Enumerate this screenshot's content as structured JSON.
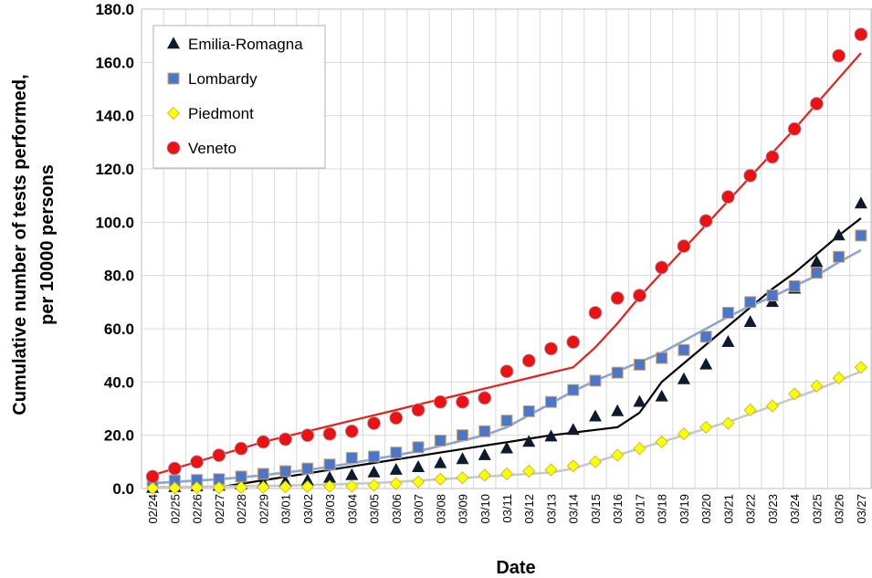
{
  "chart_data": {
    "type": "scatter",
    "title": "",
    "xlabel": "Date",
    "ylabel_line1": "Cumulative number of tests performed,",
    "ylabel_line2": "per 10000 persons",
    "ylim": [
      0,
      180
    ],
    "yticks": [
      "0.0",
      "20.0",
      "40.0",
      "60.0",
      "80.0",
      "100.0",
      "120.0",
      "140.0",
      "160.0",
      "180.0"
    ],
    "categories": [
      "02/24",
      "02/25",
      "02/26",
      "02/27",
      "02/28",
      "02/29",
      "03/01",
      "03/02",
      "03/03",
      "03/04",
      "03/05",
      "03/06",
      "03/07",
      "03/08",
      "03/09",
      "03/10",
      "03/11",
      "03/12",
      "03/13",
      "03/14",
      "03/15",
      "03/16",
      "03/17",
      "03/18",
      "03/19",
      "03/20",
      "03/21",
      "03/22",
      "03/23",
      "03/24",
      "03/25",
      "03/26",
      "03/27"
    ],
    "grid": true,
    "legend_position": "top-left",
    "series": [
      {
        "name": "Emilia-Romagna",
        "marker": "triangle",
        "color": "#0d1b2e",
        "line_color": "#000000",
        "values": [
          0.2,
          0.5,
          0.8,
          1.0,
          1.5,
          2.0,
          2.5,
          3.0,
          4.0,
          5.0,
          6.0,
          7.0,
          8.0,
          9.5,
          11.0,
          12.5,
          15.0,
          17.5,
          19.5,
          22.0,
          27.0,
          29.0,
          32.5,
          34.5,
          41.0,
          46.5,
          55.0,
          62.5,
          70.0,
          75.0,
          85.0,
          95.0,
          107.0
        ],
        "trend": [
          null,
          null,
          null,
          0.5,
          1.8,
          3.1,
          4.4,
          5.7,
          7.0,
          8.3,
          9.6,
          10.9,
          12.2,
          13.5,
          14.8,
          16.1,
          17.4,
          18.7,
          20.0,
          21.0,
          22.0,
          23.0,
          28.5,
          40.0,
          47.0,
          54.0,
          61.0,
          68.0,
          75.0,
          81.0,
          88.0,
          95.0,
          101.5
        ]
      },
      {
        "name": "Lombardy",
        "marker": "square",
        "color": "#4a77c9",
        "line_color": "#8aa6cf",
        "values": [
          3.0,
          3.0,
          3.2,
          3.5,
          4.5,
          5.5,
          6.5,
          7.5,
          9.0,
          11.5,
          12.0,
          13.5,
          15.5,
          18.0,
          20.0,
          21.5,
          25.5,
          29.0,
          32.5,
          37.0,
          40.5,
          43.5,
          46.5,
          49.0,
          52.0,
          57.0,
          66.0,
          70.0,
          72.5,
          76.0,
          81.0,
          87.0,
          95.0
        ],
        "trend": [
          2.0,
          2.5,
          3.0,
          3.5,
          4.2,
          5.0,
          6.0,
          7.0,
          8.2,
          9.5,
          11.0,
          12.5,
          14.0,
          16.0,
          18.0,
          20.0,
          23.0,
          27.5,
          32.0,
          36.5,
          40.5,
          44.0,
          47.5,
          51.0,
          55.5,
          60.0,
          64.5,
          68.5,
          72.0,
          76.0,
          80.0,
          85.0,
          89.5
        ]
      },
      {
        "name": "Piedmont",
        "marker": "diamond",
        "color": "#ffff00",
        "line_color": "#c8c8c8",
        "values": [
          0.1,
          0.2,
          0.3,
          0.3,
          0.4,
          0.5,
          0.6,
          0.7,
          0.8,
          0.9,
          1.2,
          1.8,
          2.5,
          3.5,
          4.0,
          5.0,
          5.5,
          6.5,
          7.0,
          8.5,
          10.0,
          12.5,
          15.0,
          17.5,
          20.5,
          23.0,
          24.5,
          29.5,
          31.0,
          35.5,
          38.5,
          41.5,
          45.5
        ],
        "trend": [
          0.5,
          0.6,
          0.7,
          0.8,
          0.9,
          1.0,
          1.1,
          1.3,
          1.5,
          1.8,
          2.1,
          2.5,
          3.0,
          3.5,
          4.0,
          4.5,
          5.0,
          5.5,
          6.0,
          7.5,
          10.0,
          12.5,
          15.0,
          17.5,
          20.0,
          22.5,
          25.0,
          28.0,
          31.0,
          34.0,
          37.0,
          40.5,
          44.0
        ]
      },
      {
        "name": "Veneto",
        "marker": "circle",
        "color": "#ee1111",
        "line_color": "#e3201a",
        "values": [
          4.5,
          7.5,
          10.0,
          12.5,
          15.0,
          17.5,
          18.5,
          20.0,
          20.5,
          21.5,
          24.5,
          26.5,
          29.5,
          32.5,
          32.5,
          34.0,
          44.0,
          48.0,
          52.5,
          55.0,
          66.0,
          71.5,
          72.5,
          83.0,
          91.0,
          100.5,
          109.5,
          117.5,
          124.5,
          135.0,
          144.5,
          162.5,
          170.5
        ],
        "trend": [
          5.0,
          7.5,
          10.0,
          12.5,
          15.0,
          17.5,
          19.5,
          21.5,
          23.5,
          25.5,
          27.5,
          29.5,
          31.5,
          33.5,
          35.5,
          37.5,
          39.5,
          41.5,
          43.5,
          45.5,
          53.0,
          62.0,
          72.0,
          81.0,
          90.0,
          99.0,
          108.0,
          117.0,
          126.0,
          135.0,
          144.5,
          154.0,
          163.5
        ]
      }
    ]
  }
}
